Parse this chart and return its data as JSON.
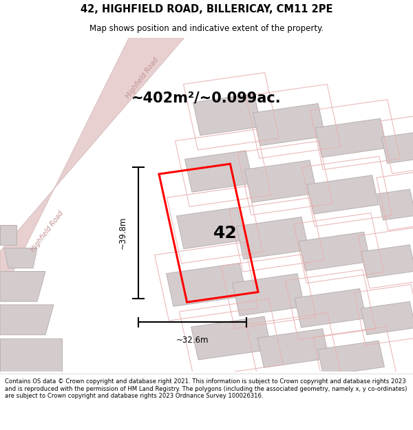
{
  "title": "42, HIGHFIELD ROAD, BILLERICAY, CM11 2PE",
  "subtitle": "Map shows position and indicative extent of the property.",
  "area_text": "~402m²/~0.099ac.",
  "property_number": "42",
  "dim_vertical": "~39.8m",
  "dim_horizontal": "~32.6m",
  "footer": "Contains OS data © Crown copyright and database right 2021. This information is subject to Crown copyright and database rights 2023 and is reproduced with the permission of HM Land Registry. The polygons (including the associated geometry, namely x, y co-ordinates) are subject to Crown copyright and database rights 2023 Ordnance Survey 100026316.",
  "map_bg": "#f5eeee",
  "road_fill": "#e8d0d0",
  "road_edge": "#d0b0b0",
  "building_fill": "#d4cccc",
  "building_edge": "#b8b0b0",
  "parcel_edge": "#e8b0b0",
  "red_plot": "#ff0000",
  "road_label": "Highfield Road"
}
